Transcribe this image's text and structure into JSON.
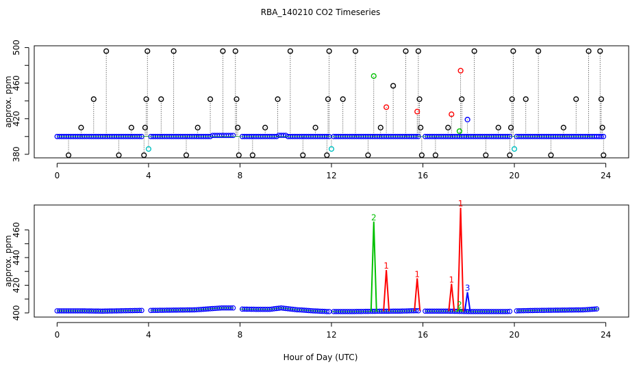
{
  "figure": {
    "title": "RBA_140210  CO2 Timeseries",
    "xlabel": "Hour of Day (UTC)"
  },
  "chart_data": [
    {
      "type": "scatter",
      "title": "RBA_140210  CO2 Timeseries",
      "ylabel": "approx. ppm",
      "xlim": [
        -1,
        25
      ],
      "ylim": [
        376,
        502
      ],
      "xticks": [
        0,
        4,
        8,
        12,
        16,
        20,
        24
      ],
      "yticks": [
        380,
        420,
        460,
        500
      ],
      "baseline": 400,
      "series": [
        {
          "color": "#0000ff",
          "values_note": ""
        }
      ],
      "excursions": [
        {
          "x": 0.5,
          "y": 379,
          "color": "#000000"
        },
        {
          "x": 1.05,
          "y": 410,
          "color": "#000000"
        },
        {
          "x": 1.6,
          "y": 442,
          "color": "#000000"
        },
        {
          "x": 2.15,
          "y": 496,
          "color": "#000000"
        },
        {
          "x": 2.7,
          "y": 379,
          "color": "#000000"
        },
        {
          "x": 3.25,
          "y": 410,
          "color": "#000000"
        },
        {
          "x": 3.8,
          "y": 379,
          "color": "#000000"
        },
        {
          "x": 3.85,
          "y": 410,
          "color": "#000000"
        },
        {
          "x": 3.9,
          "y": 442,
          "color": "#000000"
        },
        {
          "x": 3.95,
          "y": 496,
          "color": "#000000"
        },
        {
          "x": 4.0,
          "y": 386,
          "color": "#00c0c0"
        },
        {
          "x": 4.55,
          "y": 442,
          "color": "#000000"
        },
        {
          "x": 5.1,
          "y": 496,
          "color": "#000000"
        },
        {
          "x": 5.65,
          "y": 379,
          "color": "#000000"
        },
        {
          "x": 6.15,
          "y": 410,
          "color": "#000000"
        },
        {
          "x": 6.7,
          "y": 442,
          "color": "#000000"
        },
        {
          "x": 7.25,
          "y": 496,
          "color": "#000000"
        },
        {
          "x": 7.8,
          "y": 496,
          "color": "#000000"
        },
        {
          "x": 7.85,
          "y": 442,
          "color": "#000000"
        },
        {
          "x": 7.9,
          "y": 410,
          "color": "#000000"
        },
        {
          "x": 7.95,
          "y": 379,
          "color": "#000000"
        },
        {
          "x": 8.55,
          "y": 379,
          "color": "#000000"
        },
        {
          "x": 9.1,
          "y": 410,
          "color": "#000000"
        },
        {
          "x": 9.65,
          "y": 442,
          "color": "#000000"
        },
        {
          "x": 10.2,
          "y": 496,
          "color": "#000000"
        },
        {
          "x": 10.75,
          "y": 379,
          "color": "#000000"
        },
        {
          "x": 11.3,
          "y": 410,
          "color": "#000000"
        },
        {
          "x": 11.8,
          "y": 379,
          "color": "#000000"
        },
        {
          "x": 11.85,
          "y": 442,
          "color": "#000000"
        },
        {
          "x": 11.9,
          "y": 496,
          "color": "#000000"
        },
        {
          "x": 12.0,
          "y": 386,
          "color": "#00c0c0"
        },
        {
          "x": 12.5,
          "y": 442,
          "color": "#000000"
        },
        {
          "x": 13.05,
          "y": 496,
          "color": "#000000"
        },
        {
          "x": 13.6,
          "y": 379,
          "color": "#000000"
        },
        {
          "x": 13.85,
          "y": 468,
          "color": "#00c000"
        },
        {
          "x": 14.15,
          "y": 410,
          "color": "#000000"
        },
        {
          "x": 14.4,
          "y": 433,
          "color": "#ff0000"
        },
        {
          "x": 14.7,
          "y": 457,
          "color": "#000000"
        },
        {
          "x": 15.25,
          "y": 496,
          "color": "#000000"
        },
        {
          "x": 15.75,
          "y": 428,
          "color": "#ff0000"
        },
        {
          "x": 15.8,
          "y": 496,
          "color": "#000000"
        },
        {
          "x": 15.85,
          "y": 442,
          "color": "#000000"
        },
        {
          "x": 15.9,
          "y": 410,
          "color": "#000000"
        },
        {
          "x": 15.95,
          "y": 379,
          "color": "#000000"
        },
        {
          "x": 16.55,
          "y": 379,
          "color": "#000000"
        },
        {
          "x": 17.1,
          "y": 410,
          "color": "#000000"
        },
        {
          "x": 17.25,
          "y": 425,
          "color": "#ff0000"
        },
        {
          "x": 17.6,
          "y": 406,
          "color": "#00c000"
        },
        {
          "x": 17.65,
          "y": 474,
          "color": "#ff0000"
        },
        {
          "x": 17.7,
          "y": 442,
          "color": "#000000"
        },
        {
          "x": 17.95,
          "y": 419,
          "color": "#0000ff"
        },
        {
          "x": 18.25,
          "y": 496,
          "color": "#000000"
        },
        {
          "x": 18.75,
          "y": 379,
          "color": "#000000"
        },
        {
          "x": 19.3,
          "y": 410,
          "color": "#000000"
        },
        {
          "x": 19.8,
          "y": 379,
          "color": "#000000"
        },
        {
          "x": 19.85,
          "y": 410,
          "color": "#000000"
        },
        {
          "x": 19.9,
          "y": 442,
          "color": "#000000"
        },
        {
          "x": 19.95,
          "y": 496,
          "color": "#000000"
        },
        {
          "x": 20.0,
          "y": 386,
          "color": "#00c0c0"
        },
        {
          "x": 20.5,
          "y": 442,
          "color": "#000000"
        },
        {
          "x": 21.05,
          "y": 496,
          "color": "#000000"
        },
        {
          "x": 21.6,
          "y": 379,
          "color": "#000000"
        },
        {
          "x": 22.15,
          "y": 410,
          "color": "#000000"
        },
        {
          "x": 22.7,
          "y": 442,
          "color": "#000000"
        },
        {
          "x": 23.25,
          "y": 496,
          "color": "#000000"
        },
        {
          "x": 23.75,
          "y": 496,
          "color": "#000000"
        },
        {
          "x": 23.8,
          "y": 442,
          "color": "#000000"
        },
        {
          "x": 23.85,
          "y": 410,
          "color": "#000000"
        },
        {
          "x": 23.9,
          "y": 379,
          "color": "#000000"
        }
      ],
      "gaps": [
        [
          3.75,
          4.05
        ],
        [
          7.75,
          8.05
        ],
        [
          11.9,
          12.05
        ],
        [
          15.8,
          16.05
        ],
        [
          19.85,
          20.05
        ]
      ]
    },
    {
      "type": "line",
      "ylabel": "approx. ppm",
      "xlim": [
        -1,
        25
      ],
      "ylim": [
        397,
        478
      ],
      "xticks": [
        0,
        4,
        8,
        12,
        16,
        20,
        24
      ],
      "yticks": [
        400,
        420,
        440,
        460
      ],
      "baseline": [
        {
          "x": 0.0,
          "y": 401.5
        },
        {
          "x": 1.0,
          "y": 401.5
        },
        {
          "x": 2.0,
          "y": 401.3
        },
        {
          "x": 3.0,
          "y": 401.6
        },
        {
          "x": 3.7,
          "y": 401.8
        },
        {
          "x": 4.1,
          "y": 401.8
        },
        {
          "x": 5.0,
          "y": 402.0
        },
        {
          "x": 6.0,
          "y": 402.2
        },
        {
          "x": 6.7,
          "y": 403.0
        },
        {
          "x": 7.2,
          "y": 403.6
        },
        {
          "x": 7.7,
          "y": 403.6
        },
        {
          "x": 8.0,
          "y": 402.8
        },
        {
          "x": 8.7,
          "y": 402.6
        },
        {
          "x": 9.3,
          "y": 402.6
        },
        {
          "x": 9.8,
          "y": 403.6
        },
        {
          "x": 10.5,
          "y": 402.3
        },
        {
          "x": 11.2,
          "y": 401.5
        },
        {
          "x": 11.8,
          "y": 401.0
        },
        {
          "x": 12.0,
          "y": 401.0
        },
        {
          "x": 13.0,
          "y": 401.0
        },
        {
          "x": 14.0,
          "y": 401.2
        },
        {
          "x": 15.0,
          "y": 401.3
        },
        {
          "x": 15.7,
          "y": 401.6
        },
        {
          "x": 16.1,
          "y": 401.3
        },
        {
          "x": 17.0,
          "y": 401.3
        },
        {
          "x": 18.0,
          "y": 401.0
        },
        {
          "x": 19.0,
          "y": 401.0
        },
        {
          "x": 19.7,
          "y": 401.0
        },
        {
          "x": 20.1,
          "y": 401.5
        },
        {
          "x": 21.0,
          "y": 401.8
        },
        {
          "x": 22.0,
          "y": 402.0
        },
        {
          "x": 23.0,
          "y": 402.2
        },
        {
          "x": 23.7,
          "y": 403.0
        }
      ],
      "gaps": [
        [
          3.75,
          4.05
        ],
        [
          7.75,
          8.05
        ],
        [
          11.9,
          12.05
        ],
        [
          15.8,
          16.05
        ],
        [
          19.85,
          20.05
        ]
      ],
      "peaks": [
        {
          "x": 13.85,
          "y": 466,
          "label": "2",
          "color": "#00c000"
        },
        {
          "x": 14.4,
          "y": 431,
          "label": "1",
          "color": "#ff0000"
        },
        {
          "x": 15.75,
          "y": 425,
          "label": "1",
          "color": "#ff0000"
        },
        {
          "x": 17.25,
          "y": 421,
          "label": "1",
          "color": "#ff0000"
        },
        {
          "x": 17.65,
          "y": 476,
          "label": "1",
          "color": "#ff0000"
        },
        {
          "x": 17.6,
          "y": 403,
          "label": "2",
          "color": "#00c000"
        },
        {
          "x": 17.95,
          "y": 415,
          "label": "3",
          "color": "#0000ff"
        }
      ]
    }
  ]
}
